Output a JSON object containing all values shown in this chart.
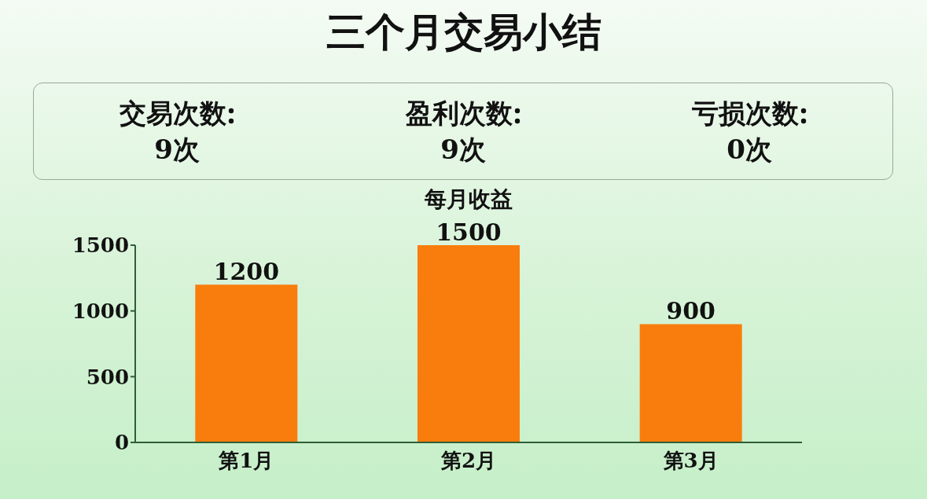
{
  "chart_data": [
    {
      "type": "other",
      "title": "三个月交易小结",
      "categories": [
        "交易次数",
        "盈利次数",
        "亏损次数"
      ],
      "values": [
        9,
        9,
        0
      ],
      "value_labels": [
        "9次",
        "9次",
        "0次"
      ]
    },
    {
      "type": "bar",
      "title": "每月收益",
      "categories": [
        "第1月",
        "第2月",
        "第3月"
      ],
      "values": [
        1200,
        1500,
        900
      ],
      "color": "#f97d0d",
      "ylim": [
        0,
        1500
      ],
      "yticks": [
        0,
        500,
        1000,
        1500
      ],
      "data_labels": true
    }
  ]
}
